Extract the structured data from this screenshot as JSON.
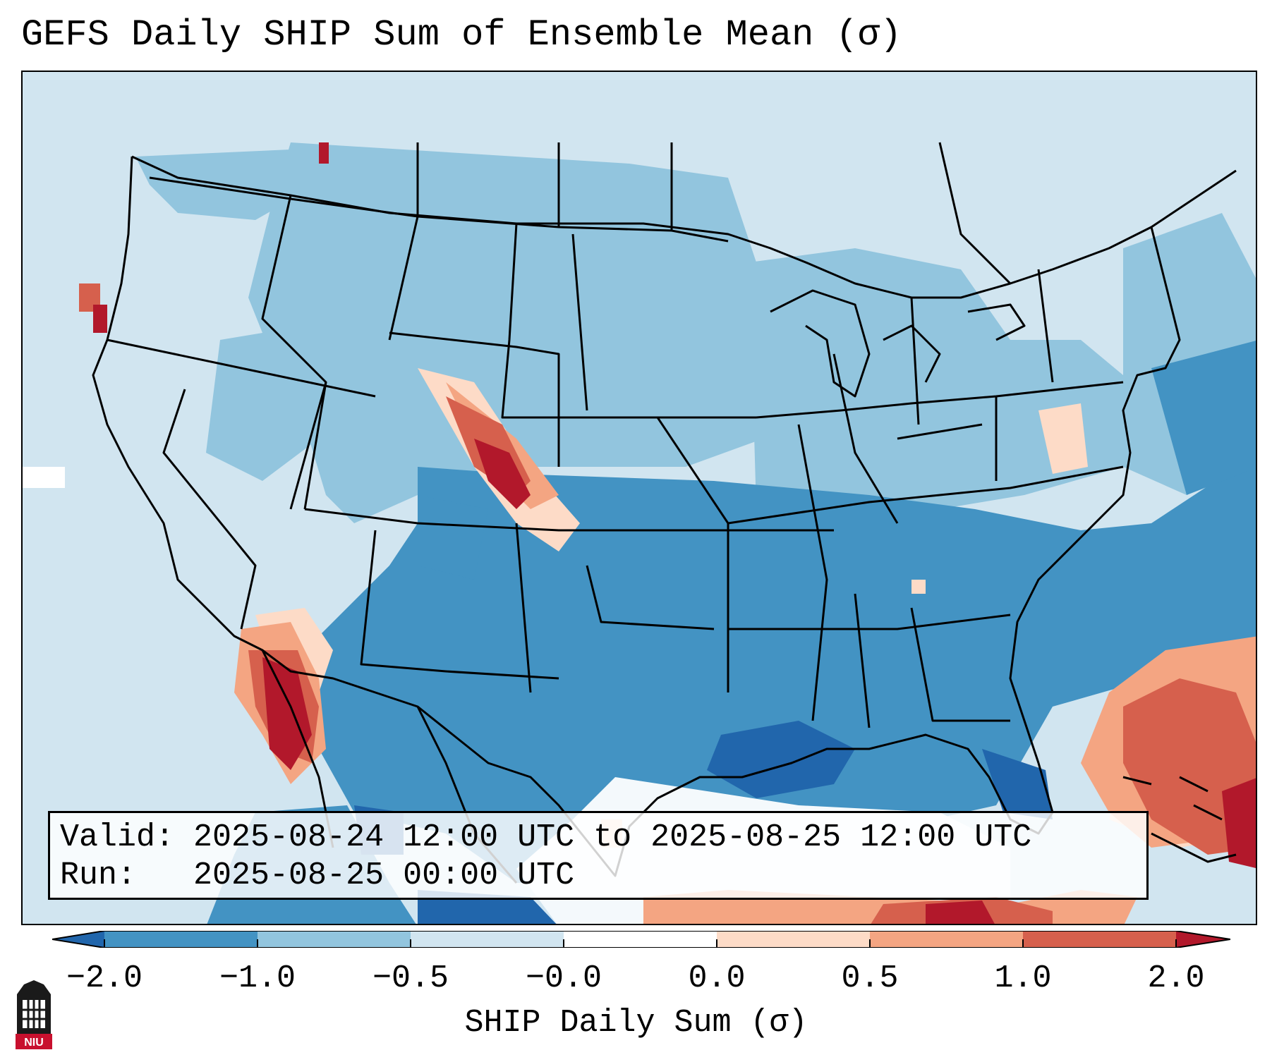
{
  "title": "GEFS Daily SHIP Sum of Ensemble Mean (σ)",
  "map": {
    "description_layer": "Conterminous United States with state borders, shaded by SHIP anomaly",
    "palette": {
      "below_m2": "#2166ac",
      "m2_to_m1": "#4393c3",
      "m1_to_m05": "#92c5de",
      "m05_to_0": "#d1e5f0",
      "zero_to_p05": "#fddbc7",
      "p05_to_p1": "#f4a582",
      "p1_to_p2": "#d6604d",
      "above_p2": "#b2182b"
    }
  },
  "info": {
    "valid_line": "Valid: 2025-08-24 12:00 UTC to 2025-08-25 12:00 UTC",
    "run_line": "Run:   2025-08-25 00:00 UTC"
  },
  "colorbar": {
    "ticks": [
      "−2.0",
      "−1.0",
      "−0.5",
      "−0.0",
      "0.0",
      "0.5",
      "1.0",
      "2.0"
    ],
    "label": "SHIP Daily Sum (σ)",
    "colors": [
      "#2166ac",
      "#4393c3",
      "#92c5de",
      "#d1e5f0",
      "#ffffff",
      "#fddbc7",
      "#f4a582",
      "#d6604d",
      "#b2182b"
    ]
  },
  "logo": {
    "text": "NIU"
  }
}
